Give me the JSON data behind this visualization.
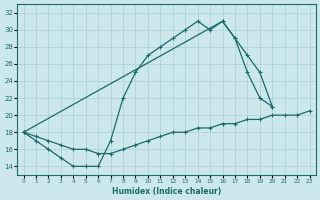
{
  "xlabel": "Humidex (Indice chaleur)",
  "ylabel": "",
  "bg_color": "#cce8ec",
  "grid_color": "#aacfd4",
  "line_color": "#1a6b6b",
  "xlim": [
    -0.5,
    23.5
  ],
  "ylim": [
    13,
    33
  ],
  "yticks": [
    14,
    16,
    18,
    20,
    22,
    24,
    26,
    28,
    30,
    32
  ],
  "xticks": [
    0,
    1,
    2,
    3,
    4,
    5,
    6,
    7,
    8,
    9,
    10,
    11,
    12,
    13,
    14,
    15,
    16,
    17,
    18,
    19,
    20,
    21,
    22,
    23
  ],
  "line1_x": [
    0,
    1,
    2,
    3,
    4,
    5,
    6,
    7,
    8,
    9,
    10,
    11,
    12,
    13,
    14,
    15,
    16,
    17,
    18,
    19,
    20
  ],
  "line1_y": [
    18,
    17,
    16,
    15,
    14,
    14,
    14,
    17,
    22,
    25,
    27,
    28,
    29,
    30,
    31,
    30,
    31,
    29,
    25,
    22,
    21
  ],
  "line2_x": [
    0,
    16,
    17,
    18,
    19,
    20
  ],
  "line2_y": [
    18,
    31,
    29,
    27,
    25,
    21
  ],
  "line3_x": [
    0,
    1,
    2,
    3,
    4,
    5,
    6,
    7,
    8,
    9,
    10,
    11,
    12,
    13,
    14,
    15,
    16,
    17,
    18,
    19,
    20,
    21,
    22,
    23
  ],
  "line3_y": [
    18,
    17.5,
    17,
    16.5,
    16,
    16,
    15.5,
    15.5,
    16,
    16.5,
    17,
    17.5,
    18,
    18,
    18.5,
    18.5,
    19,
    19,
    19.5,
    19.5,
    20,
    20,
    20,
    20.5
  ]
}
